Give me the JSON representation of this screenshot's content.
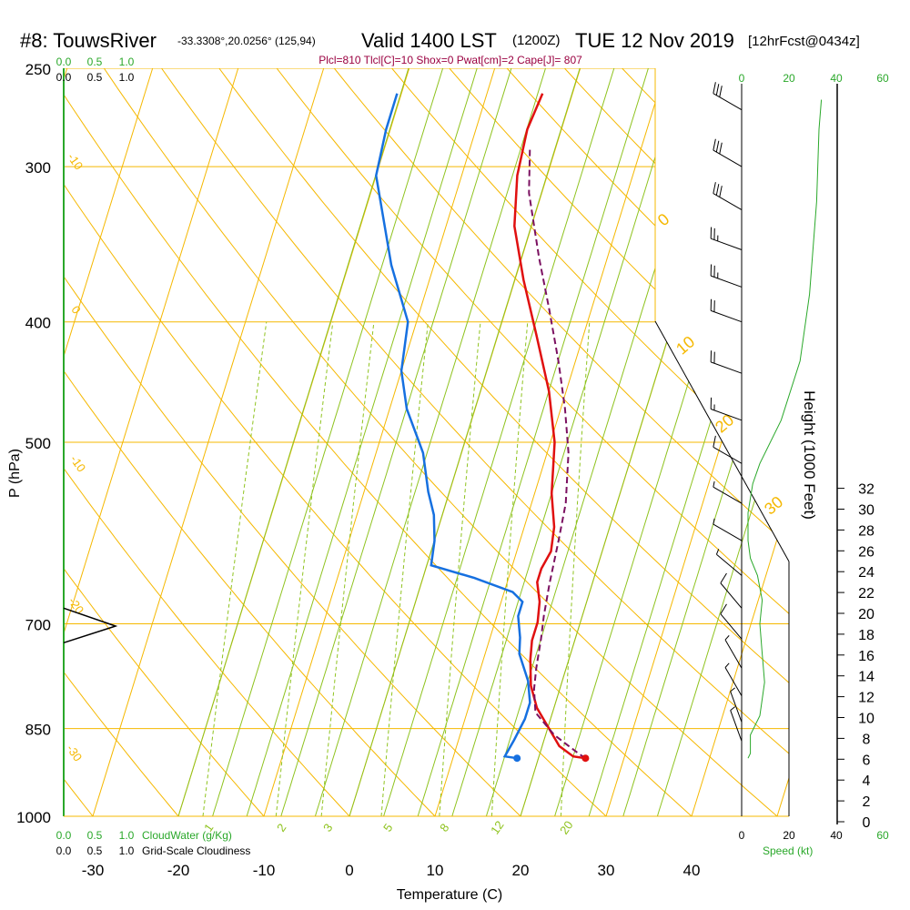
{
  "header": {
    "title": "#8: TouwsRiver",
    "location": "-33.3308°,20.0256° (125,94)",
    "valid": "Valid 1400 LST",
    "zulu": "(1200Z)",
    "date": "TUE 12 Nov 2019",
    "forecast": "[12hrFcst@0434z]",
    "params": "Plcl=810 Tlcl[C]=10 Shox=0 Pwat[cm]=2 Cape[J]= 807"
  },
  "colors": {
    "isotherm": "#f5b800",
    "dry_adiabat": "#8fc31f",
    "moist_adiabat": "#8fc31f",
    "mixing_ratio": "#8fc31f",
    "temperature": "#e01010",
    "dewpoint": "#1670e0",
    "parcel": "#7b1060",
    "speed_green": "#2aa82a",
    "param_text": "#9a0040",
    "axis": "#000000"
  },
  "left_scales": {
    "cloudwater_ticks": [
      "0.0",
      "0.5",
      "1.0"
    ],
    "cloudiness_ticks": [
      "0.0",
      "0.5",
      "1.0"
    ],
    "cloudwater_label": "CloudWater (g/Kg)",
    "cloudiness_label": "Grid-Scale Cloudiness"
  },
  "right_scales": {
    "speed_ticks_green": [
      "0",
      "20",
      "40",
      "60"
    ],
    "speed_ticks_black": [
      "0",
      "20",
      "40",
      "60"
    ],
    "speed_label": "Speed (kt)",
    "height_label": "Height (1000 Feet)",
    "height_ticks": [
      "0",
      "2",
      "4",
      "6",
      "8",
      "10",
      "12",
      "14",
      "16",
      "18",
      "20",
      "22",
      "24",
      "26",
      "28",
      "30",
      "32"
    ]
  },
  "chart_data": {
    "type": "line",
    "subtype": "skew-T log-P sounding",
    "xlabel": "Temperature (C)",
    "ylabel": "P (hPa)",
    "x_ticks": [
      -30,
      -20,
      -10,
      0,
      10,
      20,
      30,
      40
    ],
    "p_ticks": [
      250,
      300,
      400,
      500,
      700,
      850,
      1000
    ],
    "xlim": [
      -34,
      46
    ],
    "plim": [
      250,
      1000
    ],
    "grid": true,
    "series": [
      {
        "key": "temperature",
        "points": [
          [
            25.5,
            898
          ],
          [
            24,
            895
          ],
          [
            22,
            878
          ],
          [
            20.5,
            855
          ],
          [
            18,
            818
          ],
          [
            16.5,
            785
          ],
          [
            15.5,
            748
          ],
          [
            15,
            722
          ],
          [
            15,
            698
          ],
          [
            14.5,
            672
          ],
          [
            13.5,
            648
          ],
          [
            13.5,
            632
          ],
          [
            14,
            612
          ],
          [
            13.5,
            585
          ],
          [
            12,
            550
          ],
          [
            10.5,
            500
          ],
          [
            8,
            455
          ],
          [
            4.5,
            410
          ],
          [
            1,
            370
          ],
          [
            -2,
            335
          ],
          [
            -3.5,
            305
          ],
          [
            -4,
            280
          ],
          [
            -3.5,
            262
          ]
        ]
      },
      {
        "key": "dewpoint",
        "points": [
          [
            17.5,
            898
          ],
          [
            16,
            895
          ],
          [
            16.5,
            868
          ],
          [
            17,
            835
          ],
          [
            17,
            810
          ],
          [
            16,
            778
          ],
          [
            14,
            740
          ],
          [
            13.5,
            718
          ],
          [
            12.5,
            690
          ],
          [
            12.5,
            672
          ],
          [
            11,
            660
          ],
          [
            6,
            643
          ],
          [
            0.5,
            628
          ],
          [
            0,
            600
          ],
          [
            -1,
            572
          ],
          [
            -2.5,
            548
          ],
          [
            -4.5,
            510
          ],
          [
            -8,
            470
          ],
          [
            -10,
            438
          ],
          [
            -11,
            400
          ],
          [
            -15,
            360
          ],
          [
            -20,
            305
          ],
          [
            -20.5,
            280
          ],
          [
            -20.5,
            262
          ]
        ]
      },
      {
        "key": "parcel",
        "points": [
          [
            25.5,
            898
          ],
          [
            24.5,
            890
          ],
          [
            21,
            860
          ],
          [
            18,
            825
          ],
          [
            17,
            790
          ],
          [
            16.5,
            760
          ],
          [
            16,
            720
          ],
          [
            15.5,
            690
          ],
          [
            15,
            650
          ],
          [
            14.5,
            600
          ],
          [
            14,
            560
          ],
          [
            12.5,
            510
          ],
          [
            10.5,
            470
          ],
          [
            8,
            430
          ],
          [
            5,
            390
          ],
          [
            2,
            355
          ],
          [
            -1.5,
            315
          ],
          [
            -3,
            290
          ]
        ]
      }
    ],
    "surface_markers": [
      {
        "key": "temperature",
        "t": 25.5,
        "p": 898
      },
      {
        "key": "dewpoint",
        "t": 17.5,
        "p": 898
      }
    ],
    "isopleth_labels": {
      "isotherm_right": [
        "0",
        "10",
        "20",
        "30"
      ],
      "isotherm_left": [
        "-10",
        "0",
        "-10",
        "-20",
        "-30"
      ],
      "mixing_ratio": [
        "1",
        "2",
        "3",
        "5",
        "8",
        "12",
        "20"
      ]
    },
    "cloud_fraction": [
      [
        0.0,
        680
      ],
      [
        0.6,
        703
      ],
      [
        0.0,
        725
      ]
    ],
    "wind_speed_profile_kt": [
      [
        0,
        898
      ],
      [
        1,
        890
      ],
      [
        1,
        880
      ],
      [
        1,
        860
      ],
      [
        5,
        830
      ],
      [
        7,
        780
      ],
      [
        6,
        740
      ],
      [
        5,
        700
      ],
      [
        6,
        670
      ],
      [
        4,
        640
      ],
      [
        1,
        620
      ],
      [
        0,
        600
      ],
      [
        0,
        570
      ],
      [
        2,
        540
      ],
      [
        5,
        520
      ],
      [
        14,
        480
      ],
      [
        22,
        430
      ],
      [
        26,
        380
      ],
      [
        29,
        320
      ],
      [
        30,
        280
      ],
      [
        31,
        265
      ]
    ],
    "wind_barbs": [
      {
        "p": 270,
        "dir": 300,
        "spd": 30
      },
      {
        "p": 300,
        "dir": 300,
        "spd": 30
      },
      {
        "p": 325,
        "dir": 300,
        "spd": 30
      },
      {
        "p": 350,
        "dir": 290,
        "spd": 25
      },
      {
        "p": 375,
        "dir": 290,
        "spd": 25
      },
      {
        "p": 400,
        "dir": 290,
        "spd": 20
      },
      {
        "p": 440,
        "dir": 290,
        "spd": 20
      },
      {
        "p": 480,
        "dir": 290,
        "spd": 15
      },
      {
        "p": 520,
        "dir": 300,
        "spd": 10
      },
      {
        "p": 560,
        "dir": 300,
        "spd": 5
      },
      {
        "p": 600,
        "dir": 300,
        "spd": 5
      },
      {
        "p": 640,
        "dir": 310,
        "spd": 5
      },
      {
        "p": 680,
        "dir": 320,
        "spd": 10
      },
      {
        "p": 720,
        "dir": 320,
        "spd": 10
      },
      {
        "p": 760,
        "dir": 330,
        "spd": 5
      },
      {
        "p": 800,
        "dir": 330,
        "spd": 5
      },
      {
        "p": 840,
        "dir": 340,
        "spd": 5
      },
      {
        "p": 870,
        "dir": 340,
        "spd": 5
      }
    ]
  }
}
